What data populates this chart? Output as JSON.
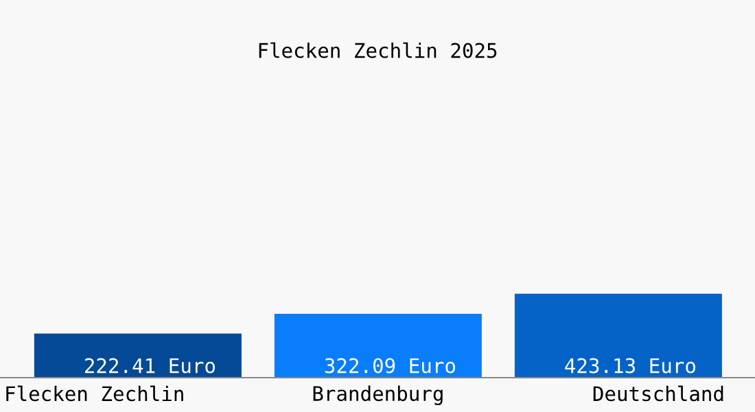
{
  "chart_data": {
    "type": "bar",
    "title": "Flecken Zechlin 2025",
    "categories": [
      "Flecken Zechlin",
      "Brandenburg",
      "Deutschland"
    ],
    "values": [
      222.41,
      322.09,
      423.13
    ],
    "colors": [
      "#054a96",
      "#0a7dfa",
      "#0563c8"
    ],
    "value_labels": [
      "222.41 Euro",
      "322.09 Euro",
      "423.13 Euro"
    ],
    "legend": false
  }
}
